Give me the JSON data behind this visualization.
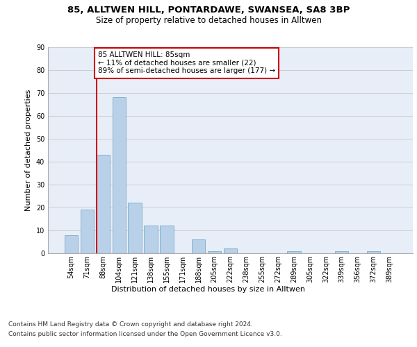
{
  "title_line1": "85, ALLTWEN HILL, PONTARDAWE, SWANSEA, SA8 3BP",
  "title_line2": "Size of property relative to detached houses in Alltwen",
  "xlabel": "Distribution of detached houses by size in Alltwen",
  "ylabel": "Number of detached properties",
  "bar_labels": [
    "54sqm",
    "71sqm",
    "88sqm",
    "104sqm",
    "121sqm",
    "138sqm",
    "155sqm",
    "171sqm",
    "188sqm",
    "205sqm",
    "222sqm",
    "238sqm",
    "255sqm",
    "272sqm",
    "289sqm",
    "305sqm",
    "322sqm",
    "339sqm",
    "356sqm",
    "372sqm",
    "389sqm"
  ],
  "bar_values": [
    8,
    19,
    43,
    68,
    22,
    12,
    12,
    0,
    6,
    1,
    2,
    0,
    0,
    0,
    1,
    0,
    0,
    1,
    0,
    1,
    0
  ],
  "bar_color": "#b8d0e8",
  "bar_edge_color": "#7aaac8",
  "annotation_text": "85 ALLTWEN HILL: 85sqm\n← 11% of detached houses are smaller (22)\n89% of semi-detached houses are larger (177) →",
  "annotation_box_color": "#ffffff",
  "annotation_box_edge": "#cc0000",
  "subject_line_color": "#cc0000",
  "ylim": [
    0,
    90
  ],
  "yticks": [
    0,
    10,
    20,
    30,
    40,
    50,
    60,
    70,
    80,
    90
  ],
  "grid_color": "#cccccc",
  "background_color": "#e8eef8",
  "footer_line1": "Contains HM Land Registry data © Crown copyright and database right 2024.",
  "footer_line2": "Contains public sector information licensed under the Open Government Licence v3.0.",
  "title_fontsize": 9.5,
  "subtitle_fontsize": 8.5,
  "axis_label_fontsize": 8,
  "tick_fontsize": 7,
  "annotation_fontsize": 7.5,
  "footer_fontsize": 6.5
}
